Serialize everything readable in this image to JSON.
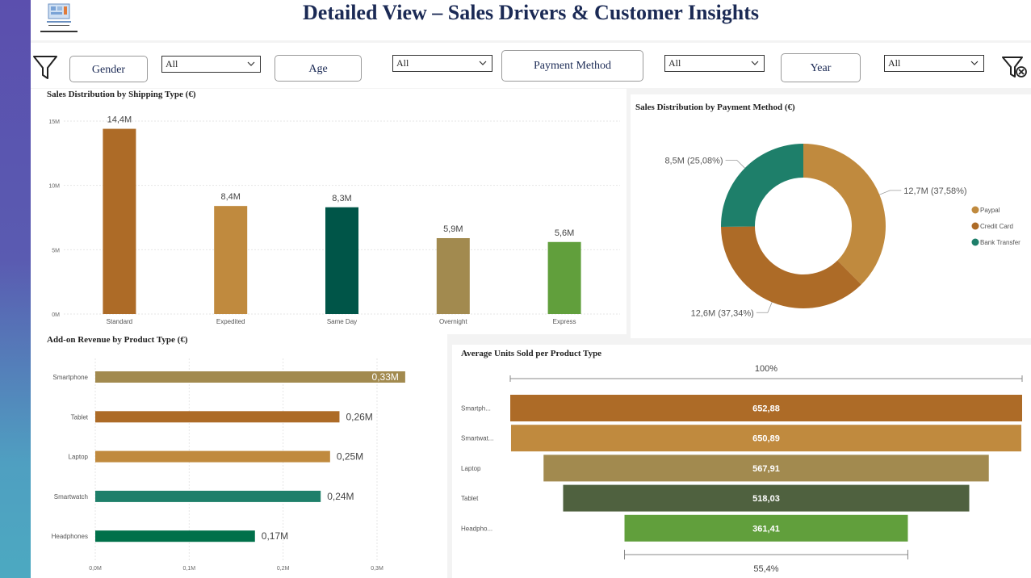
{
  "page": {
    "title": "Detailed View – Sales Drivers & Customer Insights"
  },
  "filters": {
    "gender": {
      "label": "Gender",
      "value": "All"
    },
    "age": {
      "label": "Age",
      "value": "All"
    },
    "payment": {
      "label": "Payment Method",
      "value": "All"
    },
    "year": {
      "label": "Year",
      "value": "All"
    }
  },
  "icons": {
    "filter": "filter-icon",
    "clear_filter": "clear-filter-icon",
    "dropdown": "chevron-down-icon"
  },
  "chart_data": [
    {
      "type": "bar",
      "title": "Sales Distribution by Shipping Type (€)",
      "categories": [
        "Standard",
        "Expedited",
        "Same Day",
        "Overnight",
        "Express"
      ],
      "values": [
        14.4,
        8.4,
        8.3,
        5.9,
        5.6
      ],
      "data_labels": [
        "14,4M",
        "8,4M",
        "8,3M",
        "5,9M",
        "5,6M"
      ],
      "colors": [
        "#ad6b27",
        "#c08a3e",
        "#005548",
        "#a28a4f",
        "#619f3c"
      ],
      "ylim": [
        0,
        15
      ],
      "yticks": [
        0,
        5,
        10,
        15
      ],
      "ytick_labels": [
        "0M",
        "5M",
        "10M",
        "15M"
      ],
      "grid": true
    },
    {
      "type": "pie",
      "title": "Sales Distribution by Payment Method (€)",
      "categories": [
        "Paypal",
        "Credit Card",
        "Bank Transfer"
      ],
      "values": [
        12.7,
        12.6,
        8.5
      ],
      "data_labels": [
        "12,7M (37,58%)",
        "12,6M (37,34%)",
        "8,5M (25,08%)"
      ],
      "colors": [
        "#c08a3e",
        "#ad6b27",
        "#1e7f6a"
      ],
      "legend": "right"
    },
    {
      "type": "bar",
      "orientation": "horizontal",
      "title": "Add-on Revenue by Product Type (€)",
      "categories": [
        "Smartphone",
        "Tablet",
        "Laptop",
        "Smartwatch",
        "Headphones"
      ],
      "values": [
        0.33,
        0.26,
        0.25,
        0.24,
        0.17
      ],
      "data_labels": [
        "0,33M",
        "0,26M",
        "0,25M",
        "0,24M",
        "0,17M"
      ],
      "colors": [
        "#a28a4f",
        "#ad6b27",
        "#c08a3e",
        "#1e7f6a",
        "#00704a"
      ],
      "xlim": [
        0,
        0.3
      ],
      "xticks": [
        0,
        0.1,
        0.2,
        0.3
      ],
      "xtick_labels": [
        "0,0M",
        "0,1M",
        "0,2M",
        "0,3M"
      ],
      "grid": true
    },
    {
      "type": "bar",
      "subtype": "funnel",
      "title": "Average Units Sold per Product Type",
      "categories": [
        "Smartph...",
        "Smartwat...",
        "Laptop",
        "Tablet",
        "Headpho..."
      ],
      "values": [
        652.88,
        650.89,
        567.91,
        518.03,
        361.41
      ],
      "data_labels": [
        "652,88",
        "650,89",
        "567,91",
        "518,03",
        "361,41"
      ],
      "colors": [
        "#ad6b27",
        "#c08a3e",
        "#a28a4f",
        "#4f613f",
        "#619f3c"
      ],
      "top_label": "100%",
      "bottom_label": "55,4%"
    }
  ]
}
